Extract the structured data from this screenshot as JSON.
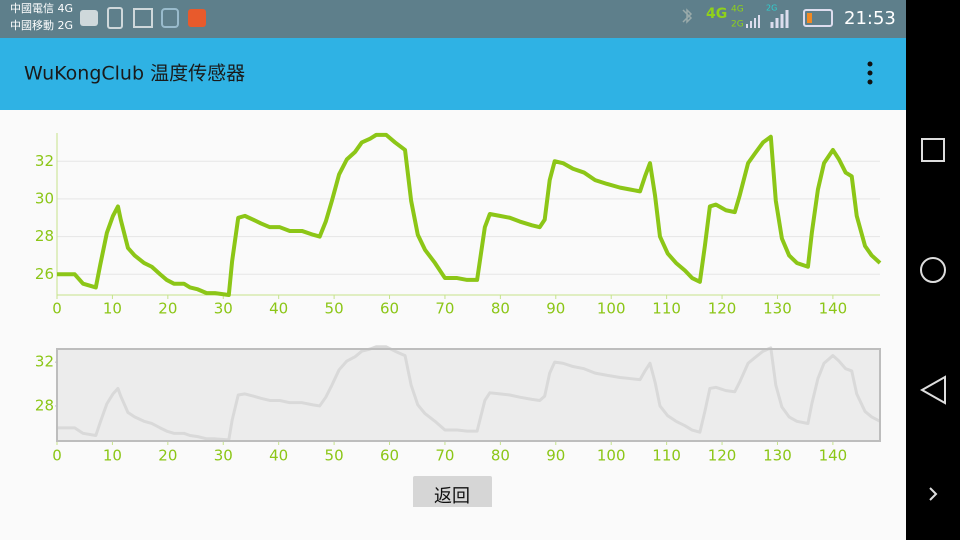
{
  "status_bar": {
    "carriers": [
      "中國電信 4G",
      "中國移動 2G"
    ],
    "network_labels": [
      "4G",
      "4G",
      "2G",
      "2G"
    ],
    "time": "21:53"
  },
  "app_bar": {
    "title": "WuKongClub 温度传感器"
  },
  "button": {
    "label": "返回"
  },
  "chart_data": [
    {
      "type": "line",
      "color": "#8cc617",
      "grid": true,
      "x": [
        0,
        3.2,
        4.7,
        7,
        7.8,
        9,
        10.1,
        11,
        11.5,
        12.8,
        14,
        15.7,
        17.1,
        18.6,
        19.8,
        21.1,
        22.9,
        24,
        25.4,
        27,
        28.5,
        31,
        31.6,
        32.7,
        33.9,
        35.4,
        36.8,
        38.4,
        40.2,
        42,
        44.2,
        46.2,
        47.4,
        48.5,
        49.6,
        50.9,
        52.3,
        53.8,
        55,
        56.5,
        57.6,
        59.4,
        61,
        62.8,
        63.9,
        65.1,
        66.4,
        68.2,
        70,
        72.2,
        74,
        75.8,
        77.2,
        78.1,
        79.9,
        81.7,
        83.5,
        85.7,
        87.1,
        88,
        88.9,
        89.8,
        91.3,
        93.1,
        95.1,
        97.1,
        99.2,
        101.6,
        103.4,
        105.2,
        106.1,
        107,
        107.9,
        108.8,
        110.2,
        111.7,
        113.3,
        114.6,
        116,
        116.9,
        117.8,
        118.9,
        120.7,
        122.3,
        123.2,
        124.7,
        125.9,
        127.4,
        128.8,
        129.7,
        130.8,
        132.1,
        133.5,
        135.5,
        136.2,
        137.3,
        138.4,
        140,
        141.1,
        142.3,
        143.4,
        144.3,
        145.8,
        147,
        148.5
      ],
      "values": [
        26.0,
        26.0,
        25.5,
        25.3,
        26.5,
        28.2,
        29.1,
        29.6,
        28.9,
        27.4,
        27.0,
        26.6,
        26.4,
        26.0,
        25.7,
        25.5,
        25.5,
        25.3,
        25.2,
        25.0,
        25.0,
        24.9,
        26.7,
        29.0,
        29.1,
        28.9,
        28.7,
        28.5,
        28.5,
        28.3,
        28.3,
        28.1,
        28.0,
        28.8,
        29.9,
        31.3,
        32.1,
        32.5,
        33.0,
        33.2,
        33.4,
        33.4,
        33.0,
        32.6,
        29.9,
        28.1,
        27.3,
        26.6,
        25.8,
        25.8,
        25.7,
        25.7,
        28.5,
        29.2,
        29.1,
        29.0,
        28.8,
        28.6,
        28.5,
        28.9,
        31.0,
        32.0,
        31.9,
        31.6,
        31.4,
        31.0,
        30.8,
        30.6,
        30.5,
        30.4,
        31.2,
        31.9,
        30.2,
        28.0,
        27.1,
        26.6,
        26.2,
        25.8,
        25.6,
        27.5,
        29.6,
        29.7,
        29.4,
        29.3,
        30.2,
        31.9,
        32.4,
        33.0,
        33.3,
        29.9,
        27.9,
        27.0,
        26.6,
        26.4,
        28.2,
        30.5,
        31.9,
        32.6,
        32.1,
        31.4,
        31.2,
        29.1,
        27.5,
        27.0,
        26.6
      ],
      "xlim": [
        0,
        148.5
      ],
      "ylim": [
        24.9,
        33.5
      ],
      "xticks": [
        0,
        10,
        20,
        30,
        40,
        50,
        60,
        70,
        80,
        90,
        100,
        110,
        120,
        130,
        140
      ],
      "yticks": [
        26,
        28,
        30,
        32
      ]
    },
    {
      "type": "navigator",
      "color": "#d9d9d9",
      "background": "#ececec",
      "xlim": [
        0,
        148.5
      ],
      "ylim": [
        24.8,
        33.2
      ],
      "xticks": [
        0,
        10,
        20,
        30,
        40,
        50,
        60,
        70,
        80,
        90,
        100,
        110,
        120,
        130,
        140
      ],
      "yticks": [
        28,
        32
      ]
    }
  ]
}
